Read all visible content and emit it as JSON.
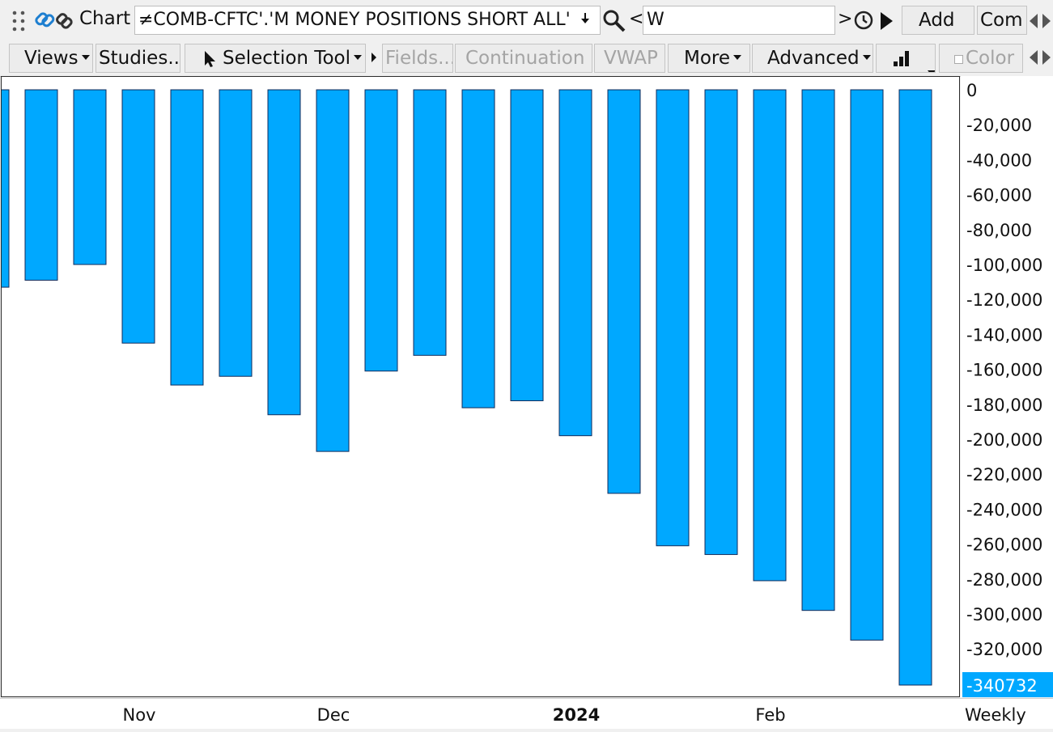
{
  "toolbar": {
    "chart_label": "Chart",
    "symbol_text": "≠COMB-CFTC'.'M MONEY POSITIONS SHORT ALL'",
    "lt": "<",
    "aggregation": "W",
    "gt": ">",
    "add_label": "Add",
    "com_label": "Com"
  },
  "toolbar2": {
    "views": "Views",
    "studies": "Studies...",
    "selection_tool": "Selection Tool",
    "fields": "Fields...",
    "continuation": "Continuation",
    "vwap": "VWAP",
    "more": "More",
    "advanced": "Advanced",
    "color": "Color"
  },
  "chart_data": {
    "type": "bar",
    "categories": [
      "",
      "",
      "",
      "",
      "",
      "",
      "",
      "",
      "",
      "",
      "",
      "",
      "",
      "",
      "",
      "",
      "",
      "",
      "",
      ""
    ],
    "values": [
      -113000,
      -109000,
      -100000,
      -145000,
      -169000,
      -164000,
      -186000,
      -207000,
      -161000,
      -152000,
      -182000,
      -178000,
      -198000,
      -231000,
      -261000,
      -266000,
      -281000,
      -298000,
      -315000,
      -340732
    ],
    "yticks": [
      0,
      -20000,
      -40000,
      -60000,
      -80000,
      -100000,
      -120000,
      -140000,
      -160000,
      -180000,
      -200000,
      -220000,
      -240000,
      -260000,
      -280000,
      -300000,
      -320000
    ],
    "ytick_labels": [
      "0",
      "-20,000",
      "-40,000",
      "-60,000",
      "-80,000",
      "-100,000",
      "-120,000",
      "-140,000",
      "-160,000",
      "-180,000",
      "-200,000",
      "-220,000",
      "-240,000",
      "-260,000",
      "-280,000",
      "-300,000",
      "-320,000"
    ],
    "ylim": [
      -345000,
      2000
    ],
    "x_labels": [
      {
        "text": "Nov",
        "index": 3,
        "bold": false
      },
      {
        "text": "Dec",
        "index": 7,
        "bold": false
      },
      {
        "text": "2024",
        "index": 12,
        "bold": true
      },
      {
        "text": "Feb",
        "index": 16,
        "bold": false
      }
    ],
    "last_value_label": "-340732",
    "period_label": "Weekly",
    "bar_color": "#00a8ff",
    "bar_edge_color": "#102a5a",
    "last_value_bg": "#00a8ff"
  }
}
